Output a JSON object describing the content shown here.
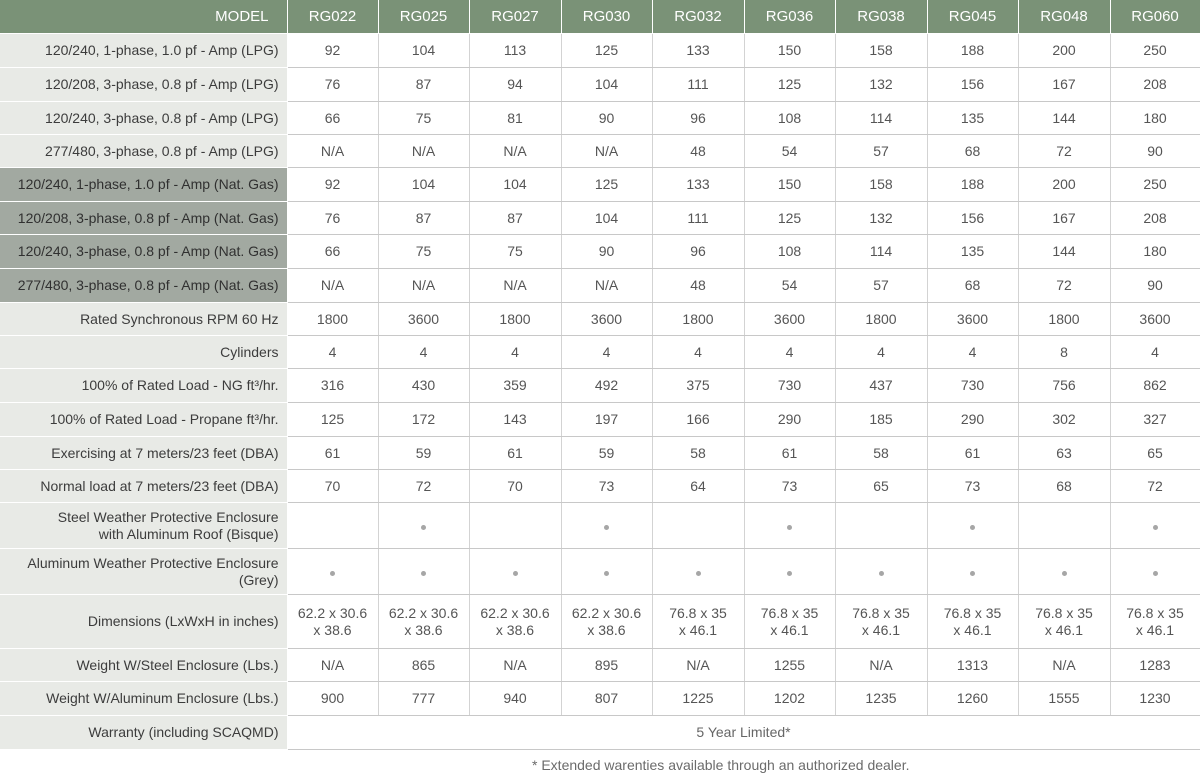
{
  "header": {
    "label": "MODEL",
    "models": [
      "RG022",
      "RG025",
      "RG027",
      "RG030",
      "RG032",
      "RG036",
      "RG038",
      "RG045",
      "RG048",
      "RG060"
    ]
  },
  "rows": [
    {
      "label": "120/240, 1-phase, 1.0 pf - Amp (LPG)",
      "values": [
        "92",
        "104",
        "113",
        "125",
        "133",
        "150",
        "158",
        "188",
        "200",
        "250"
      ]
    },
    {
      "label": "120/208, 3-phase, 0.8 pf - Amp (LPG)",
      "values": [
        "76",
        "87",
        "94",
        "104",
        "111",
        "125",
        "132",
        "156",
        "167",
        "208"
      ]
    },
    {
      "label": "120/240, 3-phase, 0.8 pf - Amp (LPG)",
      "values": [
        "66",
        "75",
        "81",
        "90",
        "96",
        "108",
        "114",
        "135",
        "144",
        "180"
      ]
    },
    {
      "label": "277/480, 3-phase, 0.8 pf - Amp (LPG)",
      "values": [
        "N/A",
        "N/A",
        "N/A",
        "N/A",
        "48",
        "54",
        "57",
        "68",
        "72",
        "90"
      ]
    },
    {
      "label": "120/240, 1-phase, 1.0 pf - Amp (Nat. Gas)",
      "values": [
        "92",
        "104",
        "104",
        "125",
        "133",
        "150",
        "158",
        "188",
        "200",
        "250"
      ]
    },
    {
      "label": "120/208, 3-phase, 0.8 pf - Amp (Nat. Gas)",
      "values": [
        "76",
        "87",
        "87",
        "104",
        "111",
        "125",
        "132",
        "156",
        "167",
        "208"
      ]
    },
    {
      "label": "120/240, 3-phase, 0.8 pf - Amp (Nat. Gas)",
      "values": [
        "66",
        "75",
        "75",
        "90",
        "96",
        "108",
        "114",
        "135",
        "144",
        "180"
      ]
    },
    {
      "label": "277/480, 3-phase, 0.8 pf - Amp (Nat. Gas)",
      "values": [
        "N/A",
        "N/A",
        "N/A",
        "N/A",
        "48",
        "54",
        "57",
        "68",
        "72",
        "90"
      ]
    },
    {
      "label": "Rated Synchronous RPM 60 Hz",
      "values": [
        "1800",
        "3600",
        "1800",
        "3600",
        "1800",
        "3600",
        "1800",
        "3600",
        "1800",
        "3600"
      ]
    },
    {
      "label": "Cylinders",
      "values": [
        "4",
        "4",
        "4",
        "4",
        "4",
        "4",
        "4",
        "4",
        "8",
        "4"
      ]
    },
    {
      "label": "100% of Rated Load - NG ft³/hr.",
      "values": [
        "316",
        "430",
        "359",
        "492",
        "375",
        "730",
        "437",
        "730",
        "756",
        "862"
      ]
    },
    {
      "label": "100% of Rated Load - Propane ft³/hr.",
      "values": [
        "125",
        "172",
        "143",
        "197",
        "166",
        "290",
        "185",
        "290",
        "302",
        "327"
      ]
    },
    {
      "label": "Exercising at 7 meters/23 feet (DBA)",
      "values": [
        "61",
        "59",
        "61",
        "59",
        "58",
        "61",
        "58",
        "61",
        "63",
        "65"
      ]
    },
    {
      "label": "Normal load at 7 meters/23 feet (DBA)",
      "values": [
        "70",
        "72",
        "70",
        "73",
        "64",
        "73",
        "65",
        "73",
        "68",
        "72"
      ]
    },
    {
      "label_line1": "Steel Weather Protective Enclosure",
      "label_line2": "with Aluminum Roof   (Bisque)",
      "available": [
        false,
        true,
        false,
        true,
        false,
        true,
        false,
        true,
        false,
        true
      ]
    },
    {
      "label_line1": "Aluminum Weather Protective Enclosure",
      "label_line2": "(Grey)",
      "available": [
        true,
        true,
        true,
        true,
        true,
        true,
        true,
        true,
        true,
        true
      ]
    },
    {
      "label": "Dimensions (LxWxH in inches)",
      "values_line1": [
        "62.2 x 30.6",
        "62.2 x 30.6",
        "62.2 x 30.6",
        "62.2 x 30.6",
        "76.8 x 35",
        "76.8 x 35",
        "76.8 x 35",
        "76.8 x 35",
        "76.8 x 35",
        "76.8 x 35"
      ],
      "values_line2": [
        "x 38.6",
        "x 38.6",
        "x 38.6",
        "x 38.6",
        "x 46.1",
        "x 46.1",
        "x 46.1",
        "x 46.1",
        "x 46.1",
        "x 46.1"
      ]
    },
    {
      "label": "Weight W/Steel Enclosure (Lbs.)",
      "values": [
        "N/A",
        "865",
        "N/A",
        "895",
        "N/A",
        "1255",
        "N/A",
        "1313",
        "N/A",
        "1283"
      ]
    },
    {
      "label": "Weight W/Aluminum Enclosure (Lbs.)",
      "values": [
        "900",
        "777",
        "940",
        "807",
        "1225",
        "1202",
        "1235",
        "1260",
        "1555",
        "1230"
      ]
    },
    {
      "label": "Warranty (including SCAQMD)",
      "value": "5 Year Limited*"
    }
  ],
  "footnote": "* Extended warenties available through an authorized dealer."
}
